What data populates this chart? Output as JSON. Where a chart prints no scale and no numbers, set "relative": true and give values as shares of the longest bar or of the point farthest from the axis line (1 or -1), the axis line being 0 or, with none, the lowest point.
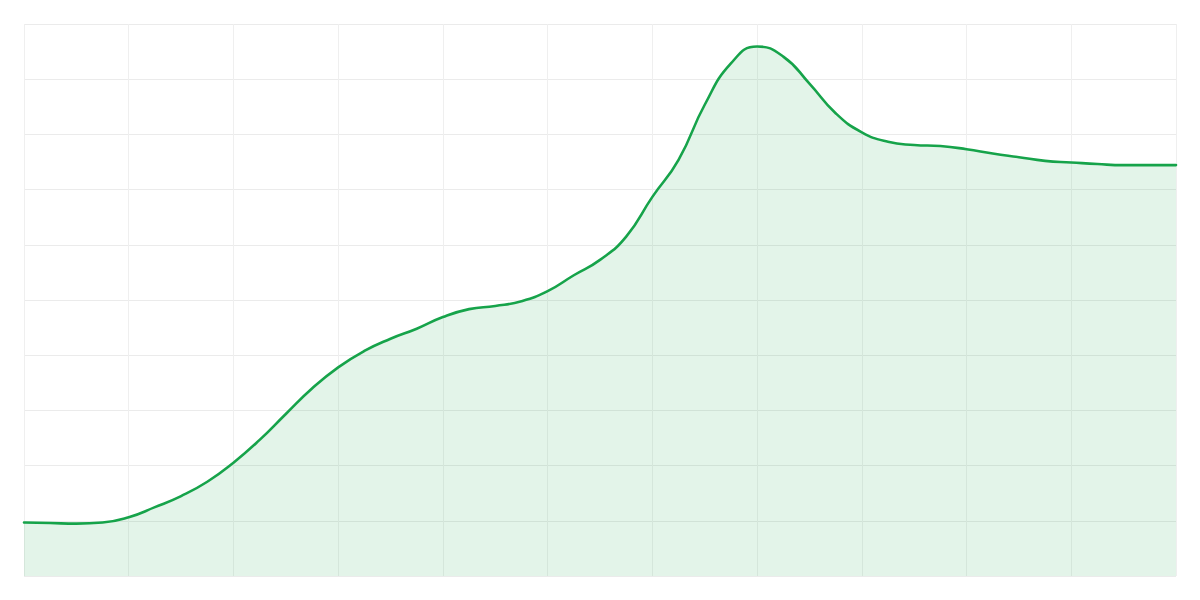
{
  "chart_data": {
    "type": "area",
    "relative": true,
    "grid": true,
    "color": "#16a34a",
    "categories": [
      null,
      null,
      null,
      null,
      null,
      null,
      null,
      null,
      null,
      null,
      null,
      null,
      null,
      null,
      null,
      null,
      null,
      null,
      null,
      null,
      null,
      null,
      null,
      null,
      null,
      null,
      null,
      null,
      null,
      null,
      null,
      null,
      null,
      null,
      null,
      null,
      null,
      null,
      null,
      null,
      null,
      null,
      null,
      null,
      null
    ],
    "values": [
      0.101,
      0.1,
      0.099,
      0.101,
      0.111,
      0.13,
      0.151,
      0.178,
      0.214,
      0.257,
      0.306,
      0.354,
      0.394,
      0.425,
      0.448,
      0.467,
      0.489,
      0.504,
      0.51,
      0.519,
      0.538,
      0.568,
      0.597,
      0.641,
      0.716,
      0.786,
      0.89,
      0.968,
      1,
      0.981,
      0.93,
      0.874,
      0.838,
      0.82,
      0.814,
      0.812,
      0.806,
      0.798,
      0.791,
      0.784,
      0.781,
      0.778,
      0.776,
      0.776,
      0.776
    ]
  }
}
